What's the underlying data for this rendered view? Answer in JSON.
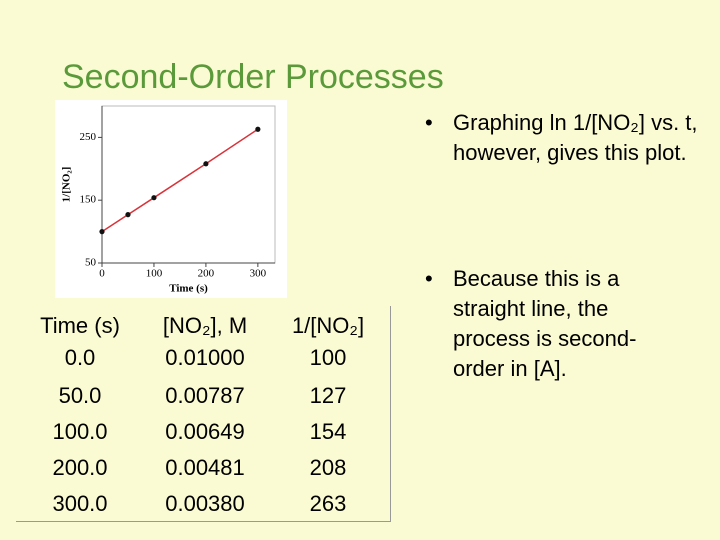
{
  "title": "Second-Order Processes",
  "chart_data": {
    "type": "line",
    "xlabel": "Time (s)",
    "ylabel": "1/[NO₂]",
    "x": [
      0,
      50,
      100,
      200,
      300
    ],
    "series": [
      {
        "color": "#d9333a",
        "values": [
          100,
          127,
          154,
          208,
          263
        ]
      }
    ],
    "xlim": [
      0,
      333
    ],
    "xticks": [
      0,
      100,
      200,
      300
    ],
    "ylim": [
      50,
      300
    ],
    "yticks": [
      50,
      150,
      250
    ]
  },
  "table": {
    "header": [
      "Time (s)",
      "[NO₂], M",
      "1/[NO₂]"
    ],
    "rows": [
      [
        "0.0",
        "0.01000",
        "100"
      ],
      [
        "50.0",
        "0.00787",
        "127"
      ],
      [
        "100.0",
        "0.00649",
        "154"
      ],
      [
        "200.0",
        "0.00481",
        "208"
      ],
      [
        "300.0",
        "0.00380",
        "263"
      ]
    ]
  },
  "bullets": [
    "Graphing ln 1/[NO₂] vs. t, however, gives this plot.",
    "Because this is a straight line, the process is second-order in [A]."
  ]
}
